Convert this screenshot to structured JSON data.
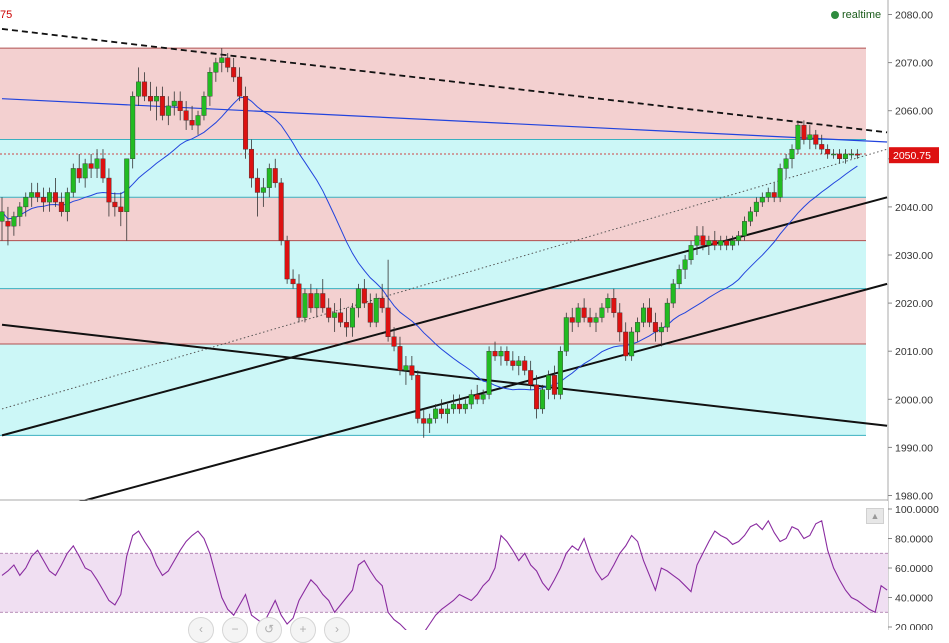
{
  "header": {
    "symbol_fragment": "75",
    "realtime_label": "realtime"
  },
  "colors": {
    "bull": "#22bb22",
    "bear": "#dd1111",
    "band_pink": "#f3d0d0",
    "band_cyan": "#ccf7f7",
    "ma_line": "#2244dd",
    "trend_line": "#111111",
    "rsi_line": "#8a2ca0",
    "rsi_band": "#f0dff2",
    "price_tag": "#dd1111"
  },
  "icons": {
    "scroll": "scroll-up-icon",
    "nav": [
      "chevron-left-icon",
      "minus-icon",
      "reset-icon",
      "plus-icon",
      "chevron-right-icon"
    ]
  },
  "chart_data": [
    {
      "type": "candlestick",
      "title": "",
      "ylim": [
        1978,
        2082
      ],
      "y_ticks": [
        "1980.00",
        "1990.00",
        "2000.00",
        "2010.00",
        "2020.00",
        "2030.00",
        "2040.00",
        "2050.00",
        "2060.00",
        "2070.00",
        "2080.00"
      ],
      "last_price": "2050.75",
      "horizontal_levels": [
        2073,
        2054,
        2051,
        2042,
        2033,
        2023,
        2011.5,
        1992.5
      ],
      "bands": [
        {
          "from": 2054,
          "to": 2073,
          "color": "pink"
        },
        {
          "from": 2042,
          "to": 2054,
          "color": "cyan"
        },
        {
          "from": 2033,
          "to": 2042,
          "color": "pink"
        },
        {
          "from": 2023,
          "to": 2033,
          "color": "cyan"
        },
        {
          "from": 2011.5,
          "to": 2023,
          "color": "pink"
        },
        {
          "from": 1992.5,
          "to": 2011.5,
          "color": "cyan"
        }
      ],
      "trend_lines": [
        {
          "style": "dashed",
          "from": [
            0,
            2077
          ],
          "to": [
            149,
            2055.5
          ]
        },
        {
          "style": "solid-blue",
          "from": [
            0,
            2062.5
          ],
          "to": [
            149,
            2053.5
          ]
        },
        {
          "style": "dotted",
          "from": [
            0,
            1998
          ],
          "to": [
            149,
            2052
          ]
        },
        {
          "style": "solid",
          "from": [
            0,
            1992.5
          ],
          "to": [
            149,
            2042
          ]
        },
        {
          "style": "solid",
          "from": [
            11,
            1978
          ],
          "to": [
            149,
            2024
          ]
        },
        {
          "style": "solid",
          "from": [
            0,
            2015.5
          ],
          "to": [
            149,
            1994.5
          ]
        }
      ],
      "ohlc": [
        [
          2037,
          2042,
          2033,
          2039
        ],
        [
          2037,
          2040,
          2032,
          2036
        ],
        [
          2036,
          2039,
          2034,
          2038
        ],
        [
          2038,
          2041,
          2036,
          2040
        ],
        [
          2040,
          2043,
          2038,
          2042
        ],
        [
          2042,
          2045,
          2040,
          2043
        ],
        [
          2043,
          2045,
          2041,
          2042
        ],
        [
          2042,
          2044,
          2039,
          2041
        ],
        [
          2041,
          2044,
          2039,
          2043
        ],
        [
          2043,
          2046,
          2040,
          2041
        ],
        [
          2041,
          2043,
          2038,
          2039
        ],
        [
          2039,
          2044,
          2037,
          2043
        ],
        [
          2043,
          2049,
          2042,
          2048
        ],
        [
          2048,
          2051,
          2045,
          2046
        ],
        [
          2046,
          2050,
          2044,
          2049
        ],
        [
          2049,
          2051,
          2046,
          2048
        ],
        [
          2048,
          2052,
          2046,
          2050
        ],
        [
          2050,
          2052,
          2045,
          2046
        ],
        [
          2046,
          2048,
          2038,
          2041
        ],
        [
          2041,
          2043,
          2038,
          2040
        ],
        [
          2040,
          2043,
          2036,
          2039
        ],
        [
          2039,
          2050,
          2033,
          2050
        ],
        [
          2050,
          2064,
          2048,
          2063
        ],
        [
          2063,
          2069,
          2061,
          2066
        ],
        [
          2066,
          2068,
          2062,
          2063
        ],
        [
          2063,
          2066,
          2060,
          2062
        ],
        [
          2062,
          2065,
          2058,
          2063
        ],
        [
          2063,
          2065,
          2058,
          2059
        ],
        [
          2059,
          2063,
          2057,
          2061
        ],
        [
          2061,
          2064,
          2059,
          2062
        ],
        [
          2062,
          2064,
          2058,
          2060
        ],
        [
          2060,
          2062,
          2056,
          2058
        ],
        [
          2058,
          2061,
          2056,
          2057
        ],
        [
          2057,
          2060,
          2055,
          2059
        ],
        [
          2059,
          2064,
          2058,
          2063
        ],
        [
          2063,
          2069,
          2061,
          2068
        ],
        [
          2068,
          2071,
          2066,
          2070
        ],
        [
          2070,
          2073,
          2068,
          2071
        ],
        [
          2071,
          2072,
          2068,
          2069
        ],
        [
          2069,
          2071,
          2066,
          2067
        ],
        [
          2067,
          2069,
          2062,
          2063
        ],
        [
          2063,
          2065,
          2050,
          2052
        ],
        [
          2052,
          2054,
          2044,
          2046
        ],
        [
          2046,
          2048,
          2038,
          2043
        ],
        [
          2043,
          2046,
          2040,
          2044
        ],
        [
          2044,
          2049,
          2042,
          2048
        ],
        [
          2048,
          2050,
          2044,
          2045
        ],
        [
          2045,
          2046,
          2032,
          2033
        ],
        [
          2033,
          2034,
          2024,
          2025
        ],
        [
          2025,
          2027,
          2023,
          2024
        ],
        [
          2024,
          2026,
          2016,
          2017
        ],
        [
          2017,
          2023,
          2016,
          2022
        ],
        [
          2022,
          2024,
          2018,
          2019
        ],
        [
          2019,
          2023,
          2017,
          2022
        ],
        [
          2022,
          2025,
          2018,
          2019
        ],
        [
          2019,
          2021,
          2016,
          2017
        ],
        [
          2017,
          2020,
          2014,
          2018
        ],
        [
          2018,
          2021,
          2015,
          2016
        ],
        [
          2016,
          2019,
          2013,
          2015
        ],
        [
          2015,
          2020,
          2013,
          2019
        ],
        [
          2019,
          2024,
          2017,
          2023
        ],
        [
          2023,
          2025,
          2019,
          2020
        ],
        [
          2020,
          2022,
          2015,
          2016
        ],
        [
          2016,
          2022,
          2015,
          2021
        ],
        [
          2021,
          2024,
          2018,
          2019
        ],
        [
          2019,
          2029,
          2012,
          2013
        ],
        [
          2013,
          2015,
          2010,
          2011
        ],
        [
          2011,
          2013,
          2005,
          2006
        ],
        [
          2006,
          2009,
          2003,
          2007
        ],
        [
          2007,
          2009,
          2004,
          2005
        ],
        [
          2005,
          2006,
          1995,
          1996
        ],
        [
          1996,
          1998,
          1992,
          1995
        ],
        [
          1995,
          1997,
          1993,
          1996
        ],
        [
          1996,
          1999,
          1995,
          1998
        ],
        [
          1998,
          2000,
          1996,
          1997
        ],
        [
          1997,
          1999,
          1995,
          1998
        ],
        [
          1998,
          2001,
          1997,
          1999
        ],
        [
          1999,
          2001,
          1997,
          1998
        ],
        [
          1998,
          2000,
          1997,
          1999
        ],
        [
          1999,
          2002,
          1998,
          2001
        ],
        [
          2001,
          2003,
          1999,
          2000
        ],
        [
          2000,
          2002,
          1999,
          2001
        ],
        [
          2001,
          2011,
          2000,
          2010
        ],
        [
          2010,
          2012,
          2008,
          2009
        ],
        [
          2009,
          2011,
          2007,
          2010
        ],
        [
          2010,
          2011,
          2007,
          2008
        ],
        [
          2008,
          2010,
          2006,
          2007
        ],
        [
          2007,
          2009,
          2005,
          2008
        ],
        [
          2008,
          2009,
          2005,
          2006
        ],
        [
          2006,
          2008,
          2002,
          2003
        ],
        [
          2003,
          2005,
          1996,
          1998
        ],
        [
          1998,
          2003,
          1997,
          2002
        ],
        [
          2002,
          2006,
          2000,
          2005
        ],
        [
          2005,
          2007,
          2000,
          2001
        ],
        [
          2001,
          2011,
          2000,
          2010
        ],
        [
          2010,
          2018,
          2009,
          2017
        ],
        [
          2017,
          2019,
          2014,
          2016
        ],
        [
          2016,
          2020,
          2015,
          2019
        ],
        [
          2019,
          2021,
          2016,
          2017
        ],
        [
          2017,
          2019,
          2015,
          2016
        ],
        [
          2016,
          2018,
          2014,
          2017
        ],
        [
          2017,
          2020,
          2016,
          2019
        ],
        [
          2019,
          2022,
          2018,
          2021
        ],
        [
          2021,
          2023,
          2017,
          2018
        ],
        [
          2018,
          2020,
          2012,
          2014
        ],
        [
          2014,
          2016,
          2008,
          2009
        ],
        [
          2009,
          2015,
          2008,
          2014
        ],
        [
          2014,
          2017,
          2012,
          2016
        ],
        [
          2016,
          2020,
          2015,
          2019
        ],
        [
          2019,
          2021,
          2015,
          2016
        ],
        [
          2016,
          2018,
          2012,
          2014
        ],
        [
          2014,
          2016,
          2011,
          2015
        ],
        [
          2015,
          2021,
          2014,
          2020
        ],
        [
          2020,
          2025,
          2019,
          2024
        ],
        [
          2024,
          2028,
          2023,
          2027
        ],
        [
          2027,
          2030,
          2025,
          2029
        ],
        [
          2029,
          2033,
          2028,
          2032
        ],
        [
          2032,
          2036,
          2030,
          2034
        ],
        [
          2034,
          2036,
          2031,
          2032
        ],
        [
          2032,
          2034,
          2030,
          2033
        ],
        [
          2033,
          2035,
          2031,
          2032
        ],
        [
          2032,
          2034,
          2031,
          2033
        ],
        [
          2033,
          2034,
          2031,
          2032
        ],
        [
          2032,
          2034,
          2031,
          2033
        ],
        [
          2033,
          2035,
          2032,
          2034
        ],
        [
          2034,
          2038,
          2033,
          2037
        ],
        [
          2037,
          2040,
          2036,
          2039
        ],
        [
          2039,
          2042,
          2038,
          2041
        ],
        [
          2041,
          2043,
          2040,
          2042
        ],
        [
          2042,
          2044,
          2041,
          2043
        ],
        [
          2043,
          2045,
          2041,
          2042
        ],
        [
          2042,
          2049,
          2041,
          2048
        ],
        [
          2048,
          2051,
          2046,
          2050
        ],
        [
          2050,
          2053,
          2048,
          2052
        ],
        [
          2052,
          2058,
          2051,
          2057
        ],
        [
          2057,
          2058,
          2053,
          2054
        ],
        [
          2054,
          2057,
          2052,
          2055
        ],
        [
          2055,
          2056,
          2052,
          2053
        ],
        [
          2053,
          2055,
          2051,
          2052
        ],
        [
          2052,
          2053,
          2050,
          2051
        ],
        [
          2051,
          2052,
          2050,
          2051
        ],
        [
          2051,
          2052,
          2049,
          2050
        ],
        [
          2050,
          2052,
          2049,
          2051
        ],
        [
          2051,
          2052,
          2050,
          2051
        ],
        [
          2051,
          2052,
          2050,
          2050.75
        ]
      ]
    },
    {
      "type": "line",
      "title": "",
      "ylim": [
        20,
        100
      ],
      "y_ticks": [
        "20.0000",
        "40.0000",
        "60.0000",
        "80.0000",
        "100.0000"
      ],
      "reference_band": [
        30,
        70
      ],
      "series": [
        {
          "values": [
            55,
            58,
            62,
            55,
            60,
            68,
            72,
            65,
            58,
            55,
            62,
            70,
            75,
            68,
            60,
            58,
            52,
            45,
            38,
            35,
            42,
            68,
            82,
            85,
            78,
            72,
            62,
            55,
            58,
            65,
            72,
            78,
            82,
            85,
            80,
            70,
            55,
            40,
            32,
            28,
            35,
            42,
            28,
            25,
            22,
            30,
            38,
            28,
            22,
            26,
            38,
            45,
            52,
            48,
            42,
            38,
            30,
            35,
            40,
            45,
            62,
            65,
            58,
            52,
            48,
            30,
            25,
            22,
            18,
            15,
            12,
            16,
            22,
            28,
            32,
            35,
            38,
            42,
            40,
            38,
            42,
            48,
            52,
            60,
            82,
            78,
            72,
            65,
            70,
            62,
            58,
            50,
            45,
            52,
            60,
            70,
            75,
            72,
            80,
            68,
            58,
            52,
            55,
            62,
            70,
            75,
            82,
            78,
            65,
            55,
            45,
            60,
            58,
            55,
            52,
            48,
            44,
            62,
            70,
            78,
            85,
            82,
            80,
            76,
            78,
            82,
            88,
            90,
            86,
            92,
            84,
            78,
            80,
            88,
            86,
            80,
            82,
            90,
            92,
            72,
            60,
            52,
            45,
            40,
            38,
            35,
            32,
            30,
            48,
            45
          ]
        }
      ]
    }
  ]
}
